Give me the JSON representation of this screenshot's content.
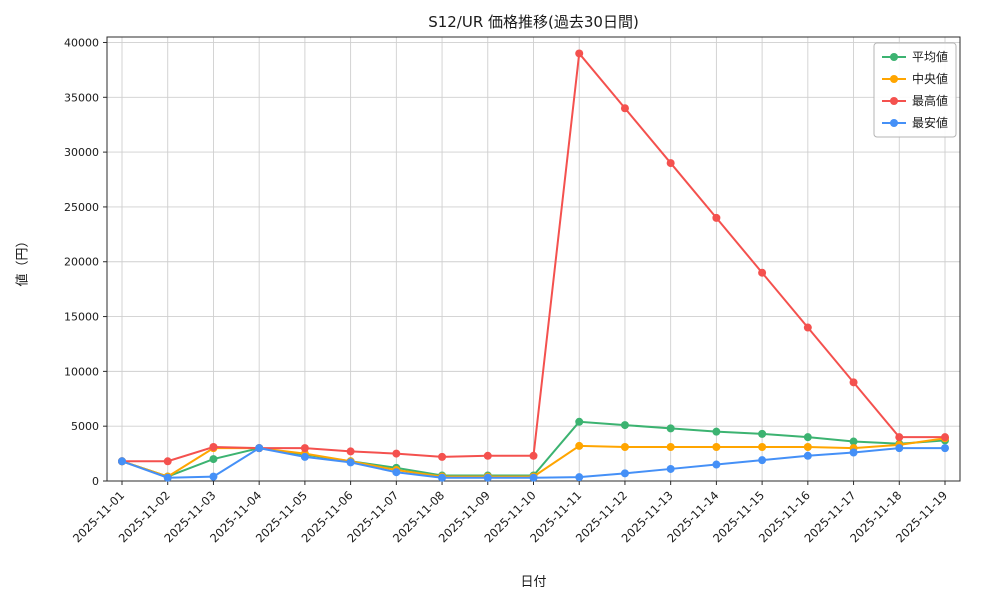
{
  "chart_data": {
    "type": "line",
    "title": "S12/UR 価格推移(過去30日間)",
    "xlabel": "日付",
    "ylabel": "値（円）",
    "x": [
      "2025-11-01",
      "2025-11-02",
      "2025-11-03",
      "2025-11-04",
      "2025-11-05",
      "2025-11-06",
      "2025-11-07",
      "2025-11-08",
      "2025-11-09",
      "2025-11-10",
      "2025-11-11",
      "2025-11-12",
      "2025-11-13",
      "2025-11-14",
      "2025-11-15",
      "2025-11-16",
      "2025-11-17",
      "2025-11-18",
      "2025-11-19"
    ],
    "ylim": [
      0,
      40500
    ],
    "yticks": [
      0,
      5000,
      10000,
      15000,
      20000,
      25000,
      30000,
      35000,
      40000
    ],
    "grid": true,
    "legend_position": "upper right",
    "series": [
      {
        "key": "average",
        "name": "平均値",
        "color": "#3cb371",
        "values": [
          1800,
          400,
          2000,
          3000,
          2400,
          1800,
          1200,
          500,
          500,
          500,
          5400,
          5100,
          4800,
          4500,
          4300,
          4000,
          3600,
          3400,
          3700
        ]
      },
      {
        "key": "median",
        "name": "中央値",
        "color": "#ffa500",
        "values": [
          1800,
          400,
          3000,
          3000,
          2500,
          1800,
          1000,
          400,
          400,
          400,
          3200,
          3100,
          3100,
          3100,
          3100,
          3100,
          3000,
          3300,
          3900
        ]
      },
      {
        "key": "max",
        "name": "最高値",
        "color": "#f4514e",
        "values": [
          1800,
          1800,
          3100,
          3000,
          3000,
          2700,
          2500,
          2200,
          2300,
          2300,
          39000,
          34000,
          29000,
          24000,
          19000,
          14000,
          9000,
          4000,
          4000
        ]
      },
      {
        "key": "min",
        "name": "最安値",
        "color": "#4590f7",
        "values": [
          1800,
          300,
          400,
          3000,
          2200,
          1700,
          800,
          300,
          300,
          300,
          350,
          700,
          1100,
          1500,
          1900,
          2300,
          2600,
          3000,
          3000
        ]
      }
    ]
  }
}
